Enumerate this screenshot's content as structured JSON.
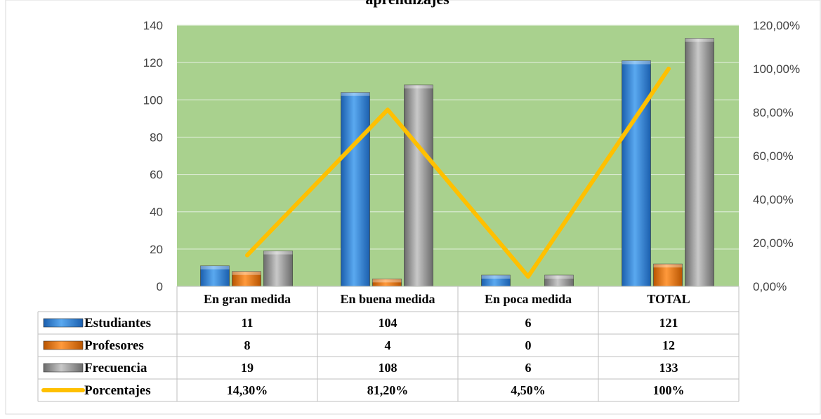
{
  "chart_data": {
    "type": "bar",
    "title": "aprendizajes",
    "categories": [
      "En gran medida",
      "En buena medida",
      "En poca medida",
      "TOTAL"
    ],
    "series": [
      {
        "name": "Estudiantes",
        "values": [
          11,
          104,
          6,
          121
        ],
        "color": "#2e86de",
        "kind": "bar"
      },
      {
        "name": "Profesores",
        "values": [
          8,
          4,
          0,
          12
        ],
        "color": "#f07d1a",
        "kind": "bar"
      },
      {
        "name": "Frecuencia",
        "values": [
          19,
          108,
          6,
          133
        ],
        "color": "#9a9a9a",
        "kind": "bar"
      },
      {
        "name": "Porcentajes",
        "values": [
          0.143,
          0.812,
          0.045,
          1.0
        ],
        "color": "#ffc000",
        "kind": "line",
        "axis": "right"
      }
    ],
    "table_rows": [
      {
        "label": "Estudiantes",
        "cells": [
          "11",
          "104",
          "6",
          "121"
        ]
      },
      {
        "label": "Profesores",
        "cells": [
          "8",
          "4",
          "0",
          "12"
        ]
      },
      {
        "label": "Frecuencia",
        "cells": [
          "19",
          "108",
          "6",
          "133"
        ]
      },
      {
        "label": "Porcentajes",
        "cells": [
          "14,30%",
          "81,20%",
          "4,50%",
          "100%"
        ]
      }
    ],
    "y_left": {
      "ylim": [
        0,
        140
      ],
      "ticks": [
        "0",
        "20",
        "40",
        "60",
        "80",
        "100",
        "120",
        "140"
      ]
    },
    "y_right": {
      "ylim": [
        0,
        1.2
      ],
      "ticks": [
        "0,00%",
        "20,00%",
        "40,00%",
        "60,00%",
        "80,00%",
        "100,00%",
        "120,00%"
      ]
    },
    "grid": true,
    "legend": "data-table",
    "plot_background": "#a9d18e"
  }
}
